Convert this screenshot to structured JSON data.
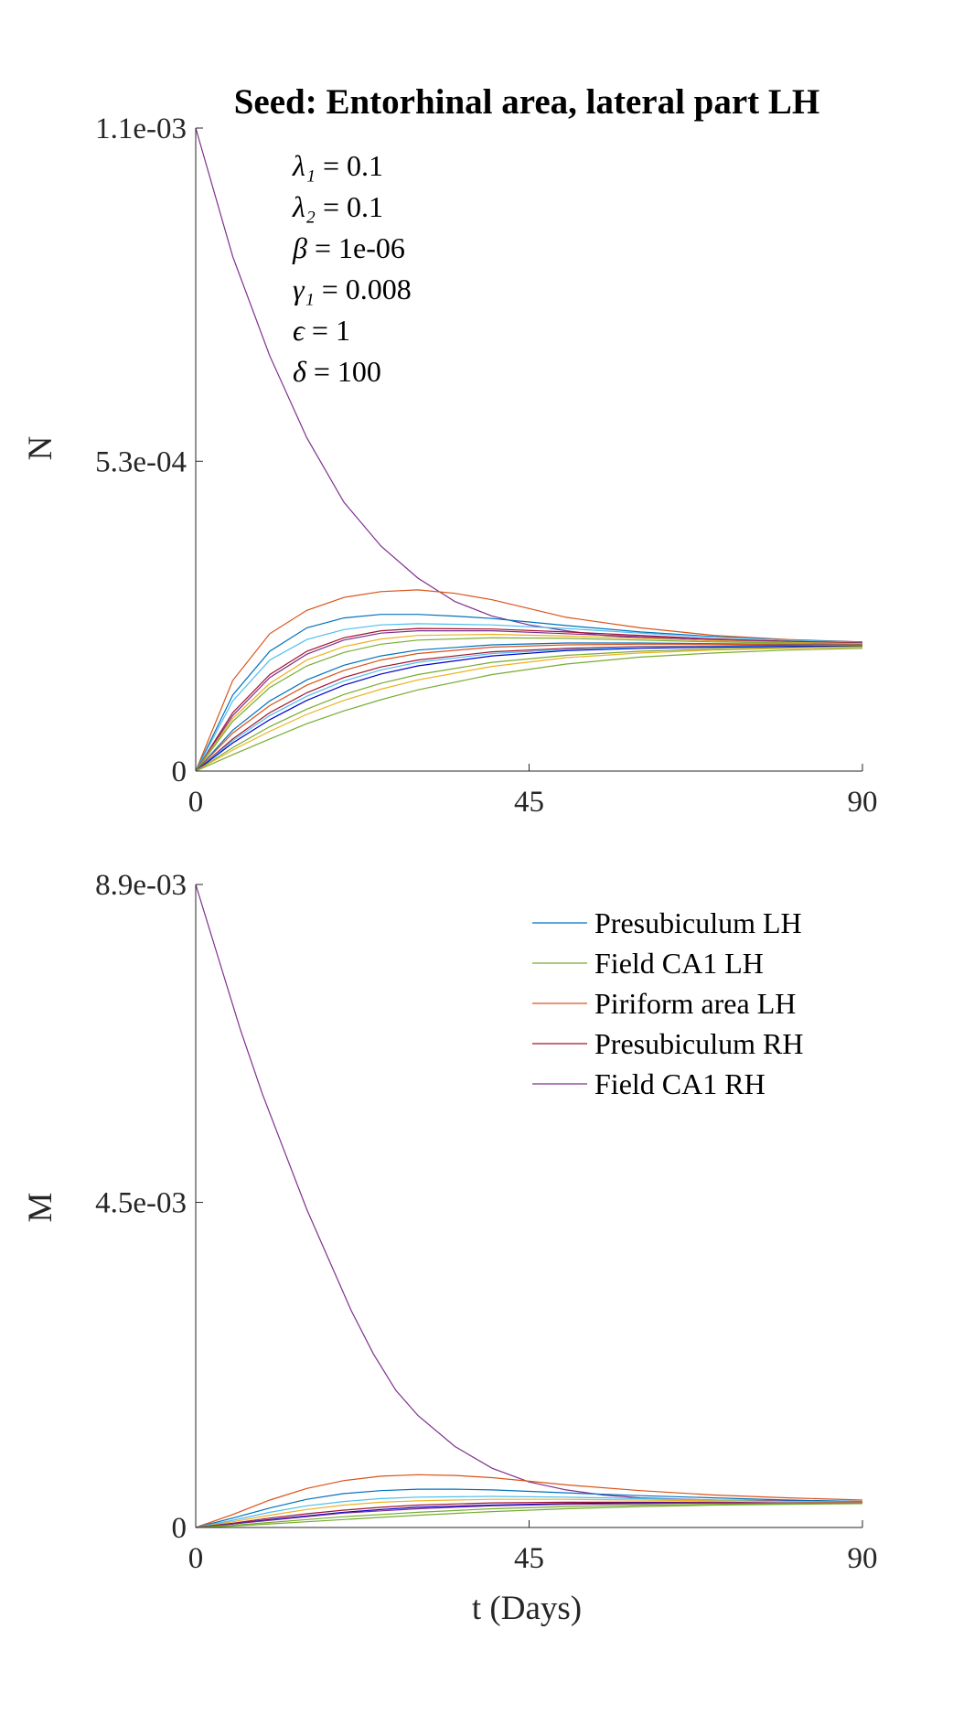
{
  "chart_data": [
    {
      "type": "line",
      "title": "Seed: Entorhinal area, lateral part LH",
      "xlabel": "",
      "ylabel": "N",
      "xlim": [
        0,
        90
      ],
      "ylim": [
        0,
        0.0011
      ],
      "xticks": [
        0,
        45,
        90
      ],
      "xtick_labels": [
        "0",
        "45",
        "90"
      ],
      "yticks": [
        0,
        0.00053,
        0.0011
      ],
      "ytick_labels": [
        "0",
        "5.3e-04",
        "1.1e-03"
      ],
      "grid": false,
      "annotations": [
        {
          "symbol": "λ₁",
          "value": "0.1"
        },
        {
          "symbol": "λ₂",
          "value": "0.1"
        },
        {
          "symbol": "β",
          "value": "1e-06"
        },
        {
          "symbol": "γ₁",
          "value": "0.008"
        },
        {
          "symbol": "ϵ",
          "value": "1"
        },
        {
          "symbol": "δ",
          "value": "100"
        }
      ],
      "series": [
        {
          "color": "#7E2F8E",
          "x": [
            0,
            5,
            10,
            15,
            20,
            25,
            30,
            35,
            40,
            45,
            50,
            55,
            60,
            70,
            80,
            90
          ],
          "y": [
            0.0011,
            0.00088,
            0.00071,
            0.00057,
            0.00046,
            0.000385,
            0.00033,
            0.00029,
            0.000265,
            0.00025,
            0.00024,
            0.000232,
            0.000228,
            0.000223,
            0.00022,
            0.000218
          ]
        },
        {
          "color": "#D95319",
          "x": [
            0,
            5,
            10,
            15,
            20,
            25,
            30,
            35,
            40,
            45,
            50,
            60,
            70,
            80,
            90
          ],
          "y": [
            0,
            0.000155,
            0.000235,
            0.000275,
            0.000297,
            0.000307,
            0.00031,
            0.000304,
            0.000293,
            0.000278,
            0.000263,
            0.000245,
            0.000232,
            0.000225,
            0.000221
          ]
        },
        {
          "color": "#0072BD",
          "x": [
            0,
            5,
            10,
            15,
            20,
            25,
            30,
            35,
            40,
            45,
            50,
            60,
            70,
            80,
            90
          ],
          "y": [
            0,
            0.00013,
            0.000205,
            0.000245,
            0.000262,
            0.000268,
            0.000268,
            0.000265,
            0.000261,
            0.000255,
            0.000249,
            0.000238,
            0.00023,
            0.000224,
            0.000221
          ]
        },
        {
          "color": "#4DBEEE",
          "x": [
            0,
            5,
            10,
            15,
            20,
            25,
            30,
            40,
            50,
            60,
            70,
            80,
            90
          ],
          "y": [
            0,
            0.00012,
            0.00019,
            0.000225,
            0.000242,
            0.00025,
            0.000252,
            0.00025,
            0.000244,
            0.000236,
            0.000229,
            0.000224,
            0.00022
          ]
        },
        {
          "color": "#A2142F",
          "x": [
            0,
            5,
            10,
            15,
            20,
            25,
            30,
            40,
            50,
            60,
            70,
            80,
            90
          ],
          "y": [
            0,
            0.0001,
            0.000165,
            0.000205,
            0.000228,
            0.00024,
            0.000244,
            0.000243,
            0.000238,
            0.000232,
            0.000226,
            0.000222,
            0.000219
          ]
        },
        {
          "color": "#7E2F8E",
          "x": [
            0,
            5,
            10,
            15,
            20,
            25,
            30,
            40,
            50,
            60,
            70,
            80,
            90
          ],
          "y": [
            0,
            9.5e-05,
            0.00016,
            0.0002,
            0.000224,
            0.000236,
            0.00024,
            0.00024,
            0.000235,
            0.00023,
            0.000225,
            0.000221,
            0.000218
          ]
        },
        {
          "color": "#EDB120",
          "x": [
            0,
            5,
            10,
            15,
            20,
            25,
            30,
            40,
            50,
            60,
            70,
            80,
            90
          ],
          "y": [
            0,
            9e-05,
            0.00015,
            0.00019,
            0.000213,
            0.000226,
            0.000232,
            0.000234,
            0.000231,
            0.000227,
            0.000223,
            0.00022,
            0.000218
          ]
        },
        {
          "color": "#77AC30",
          "x": [
            0,
            5,
            10,
            15,
            20,
            25,
            30,
            40,
            50,
            60,
            70,
            80,
            90
          ],
          "y": [
            0,
            8.5e-05,
            0.000143,
            0.00018,
            0.000203,
            0.000217,
            0.000224,
            0.000228,
            0.000227,
            0.000224,
            0.000221,
            0.000219,
            0.000217
          ]
        },
        {
          "color": "#0072BD",
          "x": [
            0,
            5,
            10,
            15,
            20,
            25,
            30,
            40,
            50,
            60,
            70,
            80,
            90
          ],
          "y": [
            0,
            7e-05,
            0.00012,
            0.000156,
            0.000181,
            0.000197,
            0.000207,
            0.000216,
            0.000219,
            0.000219,
            0.000218,
            0.000217,
            0.000216
          ]
        },
        {
          "color": "#D95319",
          "x": [
            0,
            5,
            10,
            15,
            20,
            25,
            30,
            40,
            50,
            60,
            70,
            80,
            90
          ],
          "y": [
            0,
            6.5e-05,
            0.000112,
            0.000147,
            0.000172,
            0.00019,
            0.000201,
            0.000212,
            0.000216,
            0.000217,
            0.000217,
            0.000216,
            0.000216
          ]
        },
        {
          "color": "#A2142F",
          "x": [
            0,
            5,
            10,
            15,
            20,
            25,
            30,
            40,
            50,
            60,
            70,
            80,
            90
          ],
          "y": [
            0,
            5.5e-05,
            0.0001,
            0.000134,
            0.00016,
            0.000178,
            0.00019,
            0.000204,
            0.00021,
            0.000213,
            0.000214,
            0.000215,
            0.000215
          ]
        },
        {
          "color": "#4DBEEE",
          "x": [
            0,
            5,
            10,
            15,
            20,
            25,
            30,
            40,
            50,
            60,
            70,
            80,
            90
          ],
          "y": [
            0,
            5.2e-05,
            9.5e-05,
            0.000128,
            0.000154,
            0.000173,
            0.000186,
            0.000201,
            0.000208,
            0.000212,
            0.000213,
            0.000214,
            0.000215
          ]
        },
        {
          "color": "#0000CC",
          "x": [
            0,
            5,
            10,
            15,
            20,
            25,
            30,
            40,
            50,
            60,
            70,
            80,
            90
          ],
          "y": [
            0,
            4.8e-05,
            8.8e-05,
            0.000121,
            0.000147,
            0.000166,
            0.00018,
            0.000197,
            0.000206,
            0.00021,
            0.000212,
            0.000213,
            0.000214
          ]
        },
        {
          "color": "#77AC30",
          "x": [
            0,
            5,
            10,
            15,
            20,
            25,
            30,
            40,
            50,
            60,
            70,
            80,
            90
          ],
          "y": [
            0,
            4e-05,
            7.6e-05,
            0.000106,
            0.000131,
            0.00015,
            0.000165,
            0.000186,
            0.000198,
            0.000205,
            0.000209,
            0.000211,
            0.000213
          ]
        },
        {
          "color": "#EDB120",
          "x": [
            0,
            5,
            10,
            15,
            20,
            25,
            30,
            40,
            50,
            60,
            70,
            80,
            90
          ],
          "y": [
            0,
            3.6e-05,
            6.8e-05,
            9.7e-05,
            0.000121,
            0.00014,
            0.000156,
            0.000179,
            0.000194,
            0.000202,
            0.000207,
            0.00021,
            0.000212
          ]
        },
        {
          "color": "#77AC30",
          "x": [
            0,
            5,
            10,
            15,
            20,
            25,
            30,
            40,
            50,
            60,
            70,
            80,
            90
          ],
          "y": [
            0,
            2.8e-05,
            5.5e-05,
            8.1e-05,
            0.000103,
            0.000122,
            0.000139,
            0.000165,
            0.000183,
            0.000195,
            0.000202,
            0.000207,
            0.00021
          ]
        }
      ]
    },
    {
      "type": "line",
      "title": "",
      "xlabel": "t (Days)",
      "ylabel": "M",
      "xlim": [
        0,
        90
      ],
      "ylim": [
        0,
        0.0089
      ],
      "xticks": [
        0,
        45,
        90
      ],
      "xtick_labels": [
        "0",
        "45",
        "90"
      ],
      "yticks": [
        0,
        0.0045,
        0.0089
      ],
      "ytick_labels": [
        "0",
        "4.5e-03",
        "8.9e-03"
      ],
      "grid": false,
      "legend": {
        "placement": "top-right",
        "entries": [
          {
            "name": "Presubiculum LH",
            "color": "#0072BD"
          },
          {
            "name": "Field CA1 LH",
            "color": "#77AC30"
          },
          {
            "name": "Piriform area LH",
            "color": "#D95319"
          },
          {
            "name": "Presubiculum RH",
            "color": "#A2142F"
          },
          {
            "name": "Field CA1 RH",
            "color": "#7E2F8E"
          }
        ]
      },
      "series": [
        {
          "name": "Field CA1 RH",
          "color": "#7E2F8E",
          "x": [
            0,
            3,
            6,
            9,
            12,
            15,
            18,
            21,
            24,
            27,
            30,
            35,
            40,
            45,
            50,
            55,
            60,
            70,
            80,
            90
          ],
          "y": [
            0.0089,
            0.0079,
            0.0069,
            0.006,
            0.0052,
            0.0044,
            0.0037,
            0.003,
            0.0024,
            0.0019,
            0.00155,
            0.00112,
            0.00082,
            0.00063,
            0.00052,
            0.00045,
            0.00041,
            0.00038,
            0.00037,
            0.00036
          ]
        },
        {
          "name": "Piriform area LH",
          "color": "#D95319",
          "x": [
            0,
            5,
            10,
            15,
            20,
            25,
            30,
            35,
            40,
            45,
            50,
            60,
            70,
            80,
            90
          ],
          "y": [
            0,
            0.00018,
            0.00038,
            0.00054,
            0.00065,
            0.00071,
            0.00073,
            0.00072,
            0.00069,
            0.00064,
            0.00059,
            0.00051,
            0.00045,
            0.00041,
            0.00038
          ]
        },
        {
          "name": "Presubiculum LH",
          "color": "#0072BD",
          "x": [
            0,
            5,
            10,
            15,
            20,
            25,
            30,
            35,
            40,
            45,
            50,
            60,
            70,
            80,
            90
          ],
          "y": [
            0,
            0.00013,
            0.00027,
            0.00039,
            0.00047,
            0.00051,
            0.00053,
            0.00053,
            0.00052,
            0.0005,
            0.00048,
            0.00044,
            0.00041,
            0.00038,
            0.00036
          ]
        },
        {
          "color": "#4DBEEE",
          "x": [
            0,
            5,
            10,
            15,
            20,
            25,
            30,
            40,
            50,
            60,
            70,
            80,
            90
          ],
          "y": [
            0,
            0.0001,
            0.00021,
            0.0003,
            0.00036,
            0.0004,
            0.00042,
            0.00043,
            0.00042,
            0.0004,
            0.00038,
            0.00036,
            0.00035
          ]
        },
        {
          "color": "#EDB120",
          "x": [
            0,
            5,
            10,
            15,
            20,
            25,
            30,
            40,
            50,
            60,
            70,
            80,
            90
          ],
          "y": [
            0,
            8e-05,
            0.00017,
            0.00025,
            0.00031,
            0.00035,
            0.00037,
            0.00039,
            0.00039,
            0.00038,
            0.00037,
            0.00036,
            0.00035
          ]
        },
        {
          "name": "Presubiculum RH",
          "color": "#A2142F",
          "x": [
            0,
            5,
            10,
            15,
            20,
            25,
            30,
            40,
            50,
            60,
            70,
            80,
            90
          ],
          "y": [
            0,
            6e-05,
            0.00013,
            0.00019,
            0.00024,
            0.00028,
            0.00031,
            0.00034,
            0.00035,
            0.00035,
            0.00035,
            0.00034,
            0.00034
          ]
        },
        {
          "color": "#0000CC",
          "x": [
            0,
            5,
            10,
            15,
            20,
            25,
            30,
            40,
            50,
            60,
            70,
            80,
            90
          ],
          "y": [
            0,
            5e-05,
            0.00011,
            0.00016,
            0.00021,
            0.00025,
            0.00028,
            0.00031,
            0.00033,
            0.00034,
            0.00034,
            0.00034,
            0.00034
          ]
        },
        {
          "color": "#7E2F8E",
          "x": [
            0,
            5,
            10,
            15,
            20,
            25,
            30,
            40,
            50,
            60,
            70,
            80,
            90
          ],
          "y": [
            0,
            5e-05,
            0.0001,
            0.00015,
            0.0002,
            0.00023,
            0.00026,
            0.0003,
            0.00032,
            0.00033,
            0.00034,
            0.00034,
            0.00034
          ]
        },
        {
          "name": "Field CA1 LH",
          "color": "#77AC30",
          "x": [
            0,
            5,
            10,
            15,
            20,
            25,
            30,
            40,
            50,
            60,
            70,
            80,
            90
          ],
          "y": [
            0,
            3e-05,
            7e-05,
            0.00011,
            0.00015,
            0.00018,
            0.00021,
            0.00026,
            0.00029,
            0.00031,
            0.00032,
            0.00033,
            0.00033
          ]
        },
        {
          "color": "#77AC30",
          "x": [
            0,
            5,
            10,
            15,
            20,
            25,
            30,
            40,
            50,
            60,
            70,
            80,
            90
          ],
          "y": [
            0,
            2e-05,
            5e-05,
            8e-05,
            0.00011,
            0.00014,
            0.00017,
            0.00022,
            0.00026,
            0.00029,
            0.00031,
            0.00032,
            0.00033
          ]
        }
      ]
    }
  ]
}
